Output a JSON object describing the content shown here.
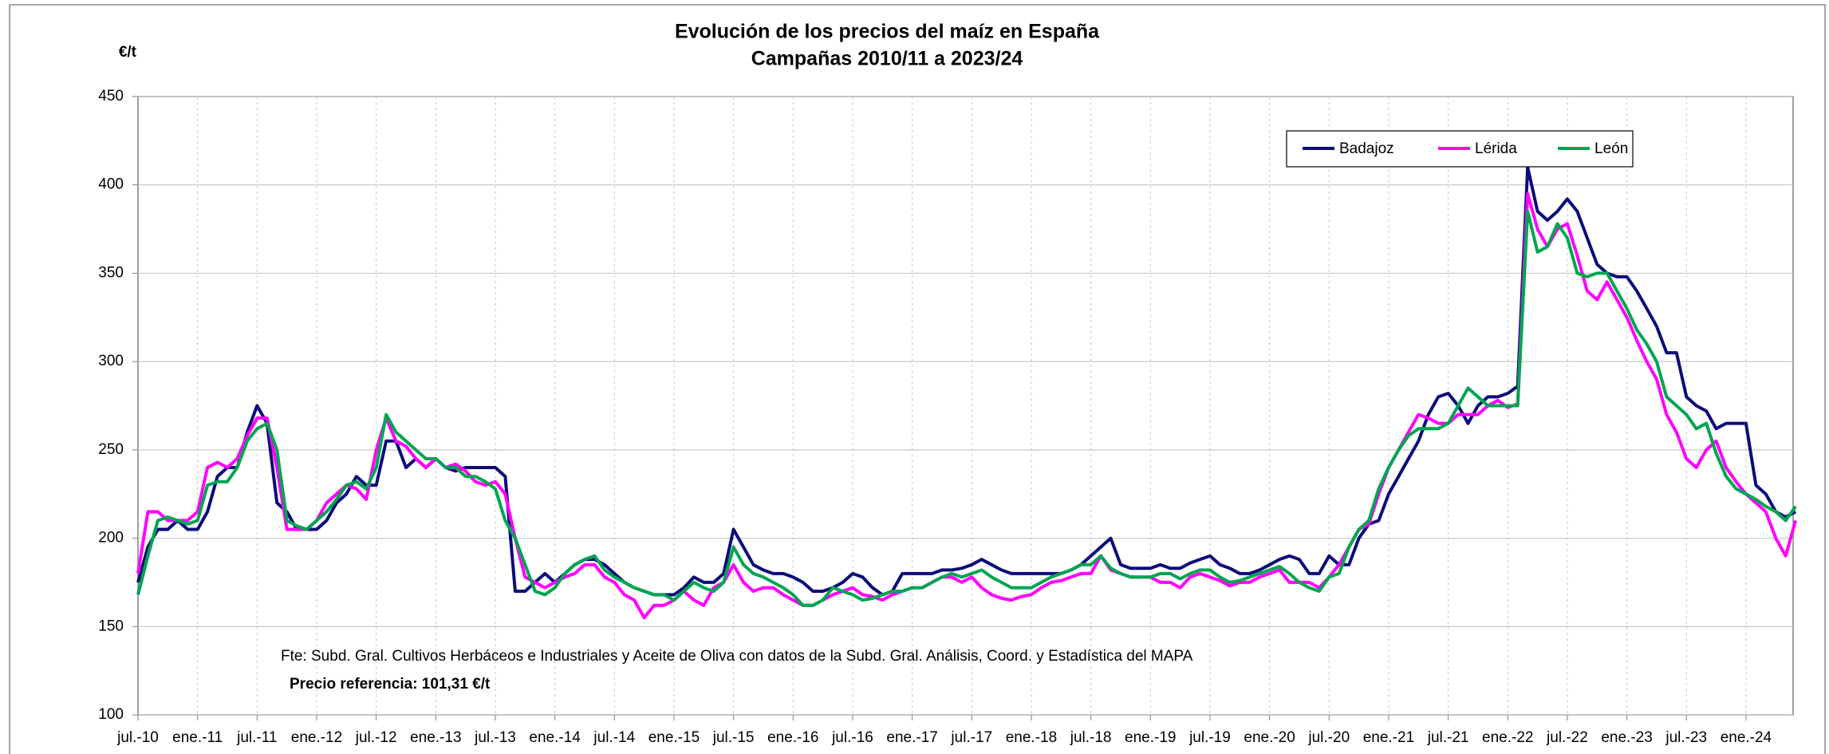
{
  "chart_data": {
    "type": "line",
    "title": "Evolución de los precios del maíz en España",
    "subtitle": "Campañas 2010/11 a 2023/24",
    "y_label": "€/t",
    "notes": [
      "Fte: Subd. Gral. Cultivos Herbáceos e Industriales y Aceite de Oliva con datos de la Subd. Gral. Análisis, Coord. y Estadística del MAPA",
      "Precio referencia: 101,31 €/t"
    ],
    "categories": [
      "jul.-10",
      null,
      null,
      null,
      null,
      null,
      "ene.-11",
      null,
      null,
      null,
      null,
      null,
      "jul.-11",
      null,
      null,
      null,
      null,
      null,
      "ene.-12",
      null,
      null,
      null,
      null,
      null,
      "jul.-12",
      null,
      null,
      null,
      null,
      null,
      "ene.-13",
      null,
      null,
      null,
      null,
      null,
      "jul.-13",
      null,
      null,
      null,
      null,
      null,
      "ene.-14",
      null,
      null,
      null,
      null,
      null,
      "jul.-14",
      null,
      null,
      null,
      null,
      null,
      "ene.-15",
      null,
      null,
      null,
      null,
      null,
      "jul.-15",
      null,
      null,
      null,
      null,
      null,
      "ene.-16",
      null,
      null,
      null,
      null,
      null,
      "jul.-16",
      null,
      null,
      null,
      null,
      null,
      "ene.-17",
      null,
      null,
      null,
      null,
      null,
      "jul.-17",
      null,
      null,
      null,
      null,
      null,
      "ene.-18",
      null,
      null,
      null,
      null,
      null,
      "jul.-18",
      null,
      null,
      null,
      null,
      null,
      "ene.-19",
      null,
      null,
      null,
      null,
      null,
      "jul.-19",
      null,
      null,
      null,
      null,
      null,
      "ene.-20",
      null,
      null,
      null,
      null,
      null,
      "jul.-20",
      null,
      null,
      null,
      null,
      null,
      "ene.-21",
      null,
      null,
      null,
      null,
      null,
      "jul.-21",
      null,
      null,
      null,
      null,
      null,
      "ene.-22",
      null,
      null,
      null,
      null,
      null,
      "jul.-22",
      null,
      null,
      null,
      null,
      null,
      "ene.-23",
      null,
      null,
      null,
      null,
      null,
      "jul.-23",
      null,
      null,
      null,
      null,
      null,
      "ene.-24",
      null,
      null,
      null,
      null,
      null
    ],
    "series": [
      {
        "name": "Badajoz",
        "color": "#0c0c7a",
        "values": [
          175,
          195,
          205,
          205,
          210,
          205,
          205,
          215,
          235,
          240,
          240,
          260,
          275,
          265,
          220,
          215,
          205,
          205,
          205,
          210,
          220,
          225,
          235,
          230,
          230,
          255,
          255,
          240,
          245,
          240,
          245,
          240,
          238,
          240,
          240,
          240,
          240,
          235,
          170,
          170,
          175,
          180,
          175,
          180,
          185,
          188,
          188,
          185,
          180,
          175,
          172,
          170,
          168,
          168,
          168,
          172,
          178,
          175,
          175,
          180,
          205,
          195,
          185,
          182,
          180,
          180,
          178,
          175,
          170,
          170,
          172,
          175,
          180,
          178,
          172,
          168,
          170,
          180,
          180,
          180,
          180,
          182,
          182,
          183,
          185,
          188,
          185,
          182,
          180,
          180,
          180,
          180,
          180,
          180,
          182,
          185,
          190,
          195,
          200,
          185,
          183,
          183,
          183,
          185,
          183,
          183,
          186,
          188,
          190,
          185,
          183,
          180,
          180,
          182,
          185,
          188,
          190,
          188,
          180,
          180,
          190,
          185,
          185,
          200,
          208,
          210,
          225,
          235,
          245,
          255,
          270,
          280,
          282,
          275,
          265,
          275,
          280,
          280,
          282,
          286,
          410,
          385,
          380,
          385,
          392,
          385,
          370,
          355,
          350,
          348,
          348,
          340,
          330,
          320,
          305,
          305,
          280,
          275,
          272,
          262,
          265,
          265,
          265,
          230,
          225,
          215,
          212,
          215
        ]
      },
      {
        "name": "Lérida",
        "color": "#ff00ff",
        "values": [
          180,
          215,
          215,
          210,
          210,
          210,
          215,
          240,
          243,
          240,
          245,
          258,
          268,
          268,
          240,
          205,
          205,
          205,
          210,
          220,
          225,
          230,
          228,
          222,
          250,
          268,
          255,
          252,
          245,
          240,
          245,
          240,
          242,
          238,
          232,
          230,
          232,
          225,
          200,
          178,
          175,
          172,
          175,
          178,
          180,
          185,
          185,
          178,
          175,
          168,
          165,
          155,
          162,
          162,
          165,
          170,
          165,
          162,
          172,
          175,
          185,
          175,
          170,
          172,
          172,
          168,
          165,
          162,
          162,
          165,
          168,
          170,
          172,
          168,
          167,
          165,
          168,
          170,
          172,
          172,
          175,
          178,
          178,
          175,
          178,
          172,
          168,
          166,
          165,
          167,
          168,
          172,
          175,
          176,
          178,
          180,
          180,
          190,
          182,
          180,
          178,
          178,
          178,
          175,
          175,
          172,
          178,
          180,
          178,
          176,
          173,
          175,
          175,
          178,
          180,
          182,
          175,
          175,
          175,
          172,
          178,
          185,
          195,
          205,
          208,
          225,
          240,
          250,
          260,
          270,
          268,
          265,
          265,
          270,
          270,
          270,
          275,
          278,
          274,
          276,
          395,
          375,
          365,
          375,
          378,
          360,
          340,
          335,
          345,
          335,
          325,
          312,
          300,
          290,
          270,
          260,
          245,
          240,
          250,
          255,
          240,
          232,
          225,
          220,
          215,
          200,
          190,
          210
        ]
      },
      {
        "name": "León",
        "color": "#00a550",
        "values": [
          168,
          190,
          210,
          212,
          210,
          208,
          210,
          230,
          232,
          232,
          240,
          255,
          262,
          265,
          250,
          210,
          207,
          205,
          210,
          215,
          222,
          230,
          232,
          228,
          240,
          270,
          260,
          255,
          250,
          245,
          245,
          240,
          240,
          235,
          235,
          232,
          228,
          210,
          200,
          185,
          170,
          168,
          172,
          180,
          185,
          188,
          190,
          182,
          178,
          175,
          172,
          170,
          168,
          168,
          165,
          170,
          175,
          172,
          170,
          175,
          195,
          185,
          180,
          178,
          175,
          172,
          168,
          162,
          162,
          165,
          172,
          170,
          168,
          165,
          166,
          168,
          170,
          170,
          172,
          172,
          175,
          178,
          180,
          178,
          180,
          182,
          178,
          175,
          172,
          172,
          172,
          175,
          178,
          180,
          182,
          185,
          185,
          190,
          183,
          180,
          178,
          178,
          178,
          180,
          180,
          177,
          180,
          182,
          182,
          178,
          175,
          176,
          178,
          180,
          182,
          184,
          180,
          175,
          172,
          170,
          178,
          180,
          195,
          205,
          210,
          228,
          240,
          250,
          258,
          262,
          262,
          262,
          265,
          275,
          285,
          280,
          275,
          275,
          275,
          275,
          385,
          362,
          365,
          378,
          370,
          350,
          348,
          350,
          350,
          340,
          330,
          318,
          310,
          300,
          280,
          275,
          270,
          262,
          265,
          248,
          235,
          228,
          225,
          222,
          218,
          215,
          210,
          218
        ]
      }
    ],
    "ylim": [
      100,
      450
    ],
    "yticks": [
      100,
      150,
      200,
      250,
      300,
      350,
      400,
      450
    ],
    "grid": true,
    "legend": "top-right"
  }
}
